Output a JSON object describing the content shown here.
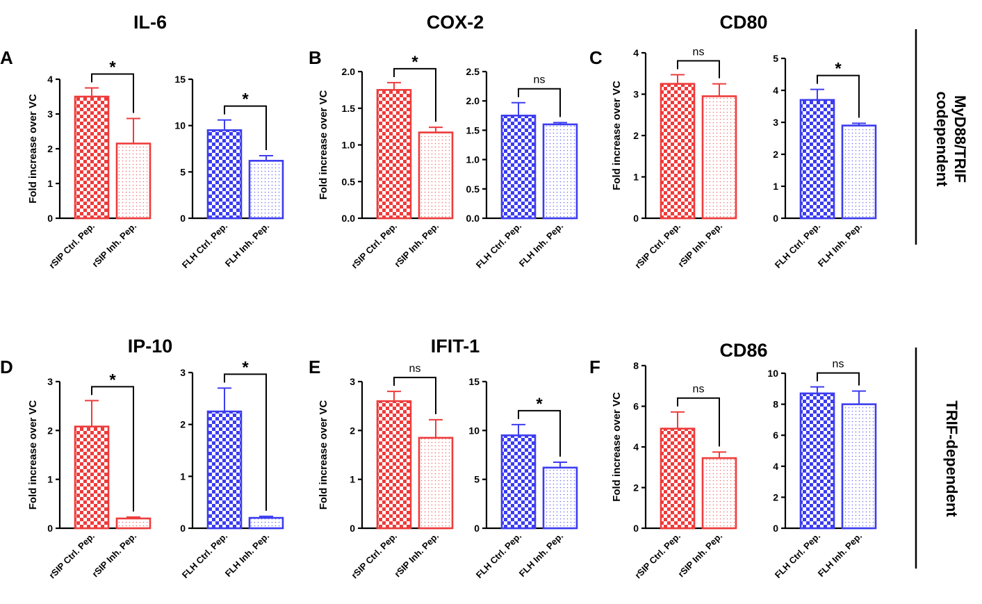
{
  "figure": {
    "colors": {
      "red": "#ee3b3b",
      "blue": "#3c3cf0",
      "axis": "#000000"
    },
    "ylabel": "Fold increase over VC",
    "side_labels": [
      "MyD88/TRIF codependent",
      "TRIF-dependent"
    ]
  },
  "chart_data": [
    {
      "type": "bar",
      "panel": "A",
      "title": "IL-6",
      "subpanel": "rSIP",
      "ylabel": "Fold increase over VC",
      "ylim": [
        0,
        4
      ],
      "yticks": [
        0,
        1,
        2,
        3,
        4
      ],
      "categories": [
        "rSIP Ctrl. Pep.",
        "rSIP Inh. Pep."
      ],
      "values": [
        3.5,
        2.15
      ],
      "errors": [
        0.25,
        0.72
      ],
      "color": "red",
      "significance": "*"
    },
    {
      "type": "bar",
      "panel": "A",
      "subpanel": "FLH",
      "ylim": [
        0,
        15
      ],
      "yticks": [
        0,
        5,
        10,
        15
      ],
      "categories": [
        "FLH Ctrl. Pep.",
        "FLH Inh. Pep."
      ],
      "values": [
        9.5,
        6.2
      ],
      "errors": [
        1.1,
        0.55
      ],
      "color": "blue",
      "significance": "*"
    },
    {
      "type": "bar",
      "panel": "B",
      "title": "COX-2",
      "subpanel": "rSIP",
      "ylabel": "Fold increase over VC",
      "ylim": [
        0,
        2.0
      ],
      "yticks": [
        0.0,
        0.5,
        1.0,
        1.5,
        2.0
      ],
      "categories": [
        "rSIP Ctrl. Pep.",
        "rSIP Inh. Pep."
      ],
      "values": [
        1.75,
        1.17
      ],
      "errors": [
        0.1,
        0.07
      ],
      "color": "red",
      "significance": "*"
    },
    {
      "type": "bar",
      "panel": "B",
      "subpanel": "FLH",
      "ylim": [
        0,
        2.5
      ],
      "yticks": [
        0.0,
        0.5,
        1.0,
        1.5,
        2.0,
        2.5
      ],
      "categories": [
        "FLH Ctrl. Pep.",
        "FLH Inh. Pep."
      ],
      "values": [
        1.75,
        1.6
      ],
      "errors": [
        0.22,
        0.03
      ],
      "color": "blue",
      "significance": "ns"
    },
    {
      "type": "bar",
      "panel": "C",
      "title": "CD80",
      "subpanel": "rSIP",
      "ylabel": "Fold increase over VC",
      "ylim": [
        0,
        4
      ],
      "yticks": [
        0,
        1,
        2,
        3,
        4
      ],
      "categories": [
        "rSIP Ctrl. Pep.",
        "rSIP Inh. Pep."
      ],
      "values": [
        3.25,
        2.95
      ],
      "errors": [
        0.22,
        0.3
      ],
      "color": "red",
      "significance": "ns"
    },
    {
      "type": "bar",
      "panel": "C",
      "subpanel": "FLH",
      "ylim": [
        0,
        5
      ],
      "yticks": [
        0,
        1,
        2,
        3,
        4,
        5
      ],
      "categories": [
        "FLH Ctrl. Pep.",
        "FLH Inh. Pep."
      ],
      "values": [
        3.7,
        2.9
      ],
      "errors": [
        0.33,
        0.07
      ],
      "color": "blue",
      "significance": "*"
    },
    {
      "type": "bar",
      "panel": "D",
      "title": "IP-10",
      "subpanel": "rSIP",
      "ylabel": "Fold increase over VC",
      "ylim": [
        0,
        3
      ],
      "yticks": [
        0,
        1,
        2,
        3
      ],
      "categories": [
        "rSIP Ctrl. Pep.",
        "rSIP Inh. Pep."
      ],
      "values": [
        2.08,
        0.2
      ],
      "errors": [
        0.53,
        0.03
      ],
      "color": "red",
      "significance": "*"
    },
    {
      "type": "bar",
      "panel": "D",
      "subpanel": "FLH",
      "ylim": [
        0,
        3
      ],
      "yticks": [
        0,
        1,
        2,
        3
      ],
      "categories": [
        "FLH Ctrl. Pep.",
        "FLH Inh. Pep."
      ],
      "values": [
        2.25,
        0.2
      ],
      "errors": [
        0.45,
        0.03
      ],
      "color": "blue",
      "significance": "*"
    },
    {
      "type": "bar",
      "panel": "E",
      "title": "IFIT-1",
      "subpanel": "rSIP",
      "ylabel": "Fold increase over VC",
      "ylim": [
        0,
        3
      ],
      "yticks": [
        0,
        1,
        2,
        3
      ],
      "categories": [
        "rSIP Ctrl. Pep.",
        "rSIP Inh. Pep."
      ],
      "values": [
        2.6,
        1.85
      ],
      "errors": [
        0.2,
        0.37
      ],
      "color": "red",
      "significance": "ns"
    },
    {
      "type": "bar",
      "panel": "E",
      "subpanel": "FLH",
      "ylim": [
        0,
        15
      ],
      "yticks": [
        0,
        5,
        10,
        15
      ],
      "categories": [
        "FLH Ctrl. Pep.",
        "FLH Inh. Pep."
      ],
      "values": [
        9.5,
        6.2
      ],
      "errors": [
        1.1,
        0.55
      ],
      "color": "blue",
      "significance": "*"
    },
    {
      "type": "bar",
      "panel": "F",
      "title": "CD86",
      "subpanel": "rSIP",
      "ylabel": "Fold increase over VC",
      "ylim": [
        0,
        8
      ],
      "yticks": [
        0,
        2,
        4,
        6,
        8
      ],
      "categories": [
        "rSIP Ctrl. Pep.",
        "rSIP Inh. Pep."
      ],
      "values": [
        4.9,
        3.45
      ],
      "errors": [
        0.82,
        0.3
      ],
      "color": "red",
      "significance": "ns"
    },
    {
      "type": "bar",
      "panel": "F",
      "subpanel": "FLH",
      "ylim": [
        0,
        10
      ],
      "yticks": [
        0,
        2,
        4,
        6,
        8,
        10
      ],
      "categories": [
        "FLH Ctrl. Pep.",
        "FLH Inh. Pep."
      ],
      "values": [
        8.7,
        8.0
      ],
      "errors": [
        0.42,
        0.85
      ],
      "color": "blue",
      "significance": "ns"
    }
  ]
}
